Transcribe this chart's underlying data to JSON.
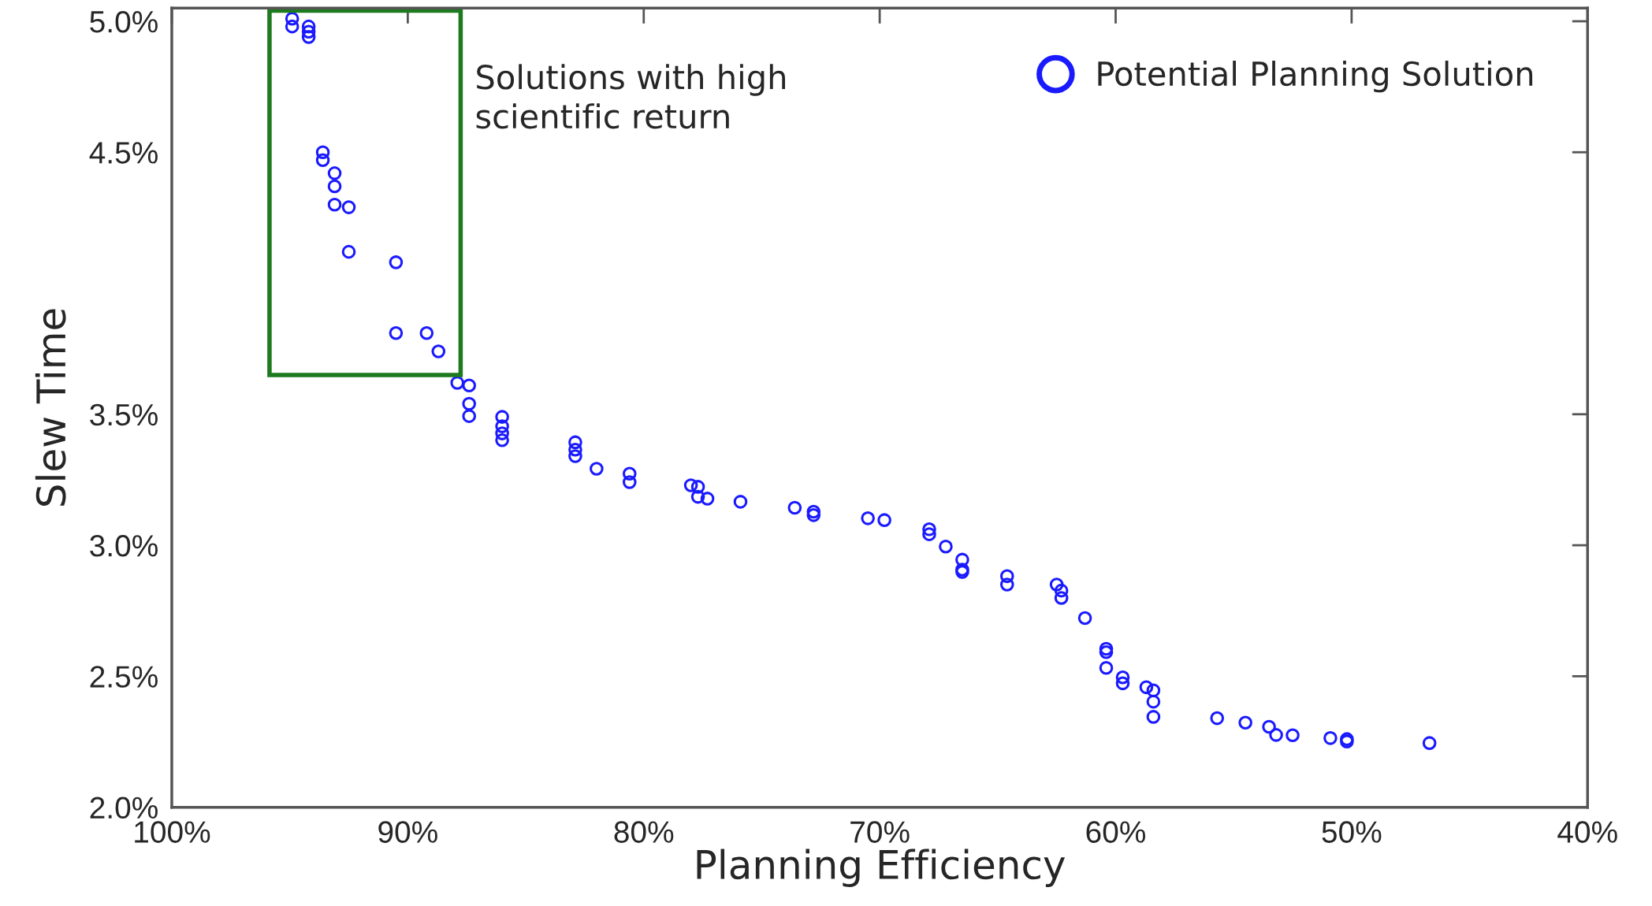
{
  "chart_data": {
    "type": "scatter",
    "xlabel": "Planning Efficiency",
    "ylabel": "Slew Time",
    "xlim": [
      100,
      40
    ],
    "xticks": [
      {
        "value": 100,
        "label": "100%"
      },
      {
        "value": 90,
        "label": "90%"
      },
      {
        "value": 80,
        "label": "80%"
      },
      {
        "value": 70,
        "label": "70%"
      },
      {
        "value": 60,
        "label": "60%"
      },
      {
        "value": 50,
        "label": "50%"
      },
      {
        "value": 40,
        "label": "40%"
      }
    ],
    "ylim": [
      2.0,
      5.05
    ],
    "yticks": [
      {
        "value": 2.0,
        "label": "2.0%"
      },
      {
        "value": 2.5,
        "label": "2.5%"
      },
      {
        "value": 3.0,
        "label": "3.0%"
      },
      {
        "value": 3.5,
        "label": "3.5%"
      },
      {
        "value": 4.5,
        "label": "4.5%"
      },
      {
        "value": 5.0,
        "label": "5.0%"
      }
    ],
    "grid": false,
    "legend": "top right",
    "marker": "circle",
    "annotations": [
      "Solutions with high\nscientific return"
    ],
    "series": [
      {
        "name": "Potential Planning Solution",
        "color": "#1a1aff",
        "x": [
          94.9,
          94.9,
          94.2,
          94.2,
          94.2,
          93.6,
          93.6,
          93.1,
          93.1,
          93.1,
          92.5,
          92.5,
          90.5,
          90.5,
          89.2,
          88.7,
          87.9,
          87.4,
          87.4,
          87.4,
          86.0,
          86.0,
          86.0,
          86.0,
          82.9,
          82.9,
          82.9,
          82.0,
          80.6,
          80.6,
          78.0,
          77.7,
          77.7,
          77.3,
          75.9,
          73.6,
          72.8,
          72.8,
          70.5,
          69.8,
          67.9,
          67.9,
          67.2,
          66.5,
          66.5,
          66.5,
          64.6,
          64.6,
          62.5,
          62.3,
          62.3,
          61.3,
          60.4,
          60.4,
          60.4,
          59.7,
          59.7,
          58.7,
          58.4,
          58.4,
          58.4,
          55.7,
          54.5,
          53.5,
          53.2,
          52.5,
          50.9,
          50.2,
          50.2,
          46.7
        ],
        "values": [
          5.01,
          4.98,
          4.98,
          4.96,
          4.94,
          4.5,
          4.47,
          4.42,
          4.37,
          4.3,
          4.29,
          4.12,
          4.08,
          3.81,
          3.81,
          3.74,
          3.62,
          3.61,
          3.54,
          3.493,
          3.49,
          3.454,
          3.427,
          3.401,
          3.393,
          3.365,
          3.34,
          3.292,
          3.273,
          3.241,
          3.229,
          3.223,
          3.185,
          3.178,
          3.166,
          3.143,
          3.128,
          3.115,
          3.103,
          3.096,
          3.061,
          3.042,
          2.995,
          2.945,
          2.907,
          2.898,
          2.882,
          2.85,
          2.85,
          2.827,
          2.799,
          2.722,
          2.605,
          2.592,
          2.532,
          2.496,
          2.473,
          2.458,
          2.446,
          2.403,
          2.345,
          2.34,
          2.323,
          2.307,
          2.276,
          2.275,
          2.264,
          2.26,
          2.251,
          2.245
        ]
      }
    ]
  }
}
